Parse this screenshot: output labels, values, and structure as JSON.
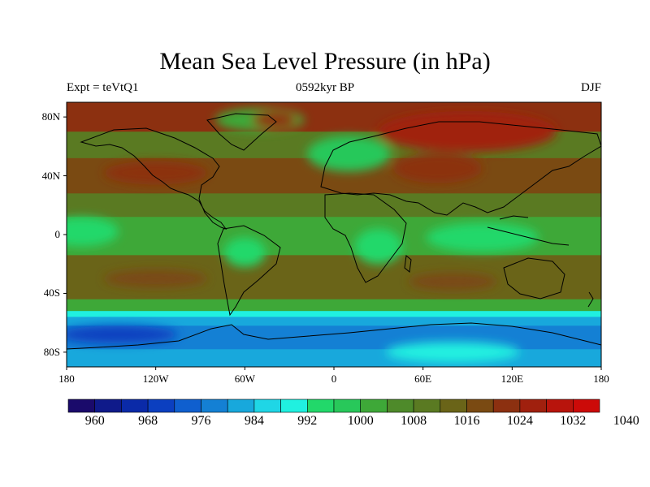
{
  "title": "Mean Sea Level Pressure (in hPa)",
  "left_label": "Expt = teVtQ1",
  "center_label": "0592kyr BP",
  "right_label": "DJF",
  "lat_ticks": [
    "80N",
    "40N",
    "0",
    "40S",
    "80S"
  ],
  "lon_ticks": [
    "180",
    "120W",
    "60W",
    "0",
    "60E",
    "120E",
    "180"
  ],
  "colorbar": {
    "labels": [
      "960",
      "968",
      "976",
      "984",
      "992",
      "1000",
      "1008",
      "1016",
      "1024",
      "1032",
      "1040"
    ],
    "colors": [
      "#1a0a6b",
      "#0f1a8a",
      "#0a2aa8",
      "#0b3fc0",
      "#0f5fcf",
      "#1480d4",
      "#18a8dc",
      "#1fd6e6",
      "#20f0e0",
      "#22d86a",
      "#28c85a",
      "#3ea838",
      "#4e8a2a",
      "#5a7a22",
      "#6a6418",
      "#7a4a12",
      "#8c3010",
      "#a0200e",
      "#b8140c",
      "#cc0a08"
    ]
  },
  "map": {
    "bands": [
      {
        "lat_top": 90,
        "lat_bottom": 70,
        "color": "#8c3010"
      },
      {
        "lat_top": 70,
        "lat_bottom": 52,
        "color": "#5a7a22"
      },
      {
        "lat_top": 52,
        "lat_bottom": 28,
        "color": "#7a4a12"
      },
      {
        "lat_top": 28,
        "lat_bottom": 12,
        "color": "#5a7a22"
      },
      {
        "lat_top": 12,
        "lat_bottom": -14,
        "color": "#3ea838"
      },
      {
        "lat_top": -14,
        "lat_bottom": -44,
        "color": "#6a6418"
      },
      {
        "lat_top": -44,
        "lat_bottom": -52,
        "color": "#3ea838"
      },
      {
        "lat_top": -52,
        "lat_bottom": -56,
        "color": "#20f0e0"
      },
      {
        "lat_top": -56,
        "lat_bottom": -62,
        "color": "#18a8dc"
      },
      {
        "lat_top": -62,
        "lat_bottom": -78,
        "color": "#1480d4"
      },
      {
        "lat_top": -78,
        "lat_bottom": -90,
        "color": "#18a8dc"
      }
    ],
    "blobs": [
      {
        "lon": 10,
        "lat": 55,
        "rlon": 28,
        "rlat": 12,
        "color": "#28c85a"
      },
      {
        "lon": -50,
        "lat": 78,
        "rlon": 30,
        "rlat": 8,
        "color": "#3ea838"
      },
      {
        "lon": -120,
        "lat": 42,
        "rlon": 35,
        "rlat": 8,
        "color": "#8c3010"
      },
      {
        "lon": 90,
        "lat": 70,
        "rlon": 60,
        "rlat": 14,
        "color": "#a0200e"
      },
      {
        "lon": 70,
        "lat": 45,
        "rlon": 30,
        "rlat": 10,
        "color": "#8c3010"
      },
      {
        "lon": -60,
        "lat": -12,
        "rlon": 14,
        "rlat": 10,
        "color": "#22d86a"
      },
      {
        "lon": 30,
        "lat": -8,
        "rlon": 16,
        "rlat": 12,
        "color": "#22d86a"
      },
      {
        "lon": 100,
        "lat": -2,
        "rlon": 38,
        "rlat": 10,
        "color": "#22d86a"
      },
      {
        "lon": -170,
        "lat": 2,
        "rlon": 25,
        "rlat": 10,
        "color": "#22d86a"
      },
      {
        "lon": -120,
        "lat": -30,
        "rlon": 35,
        "rlat": 6,
        "color": "#7a4a12"
      },
      {
        "lon": 80,
        "lat": -32,
        "rlon": 30,
        "rlat": 6,
        "color": "#7a4a12"
      },
      {
        "lon": -145,
        "lat": -68,
        "rlon": 40,
        "rlat": 6,
        "color": "#0b3fc0"
      },
      {
        "lon": 80,
        "lat": -80,
        "rlon": 45,
        "rlat": 7,
        "color": "#20f0e0"
      },
      {
        "lon": -40,
        "lat": 78,
        "rlon": 15,
        "rlat": 6,
        "color": "#8c3010"
      }
    ]
  }
}
